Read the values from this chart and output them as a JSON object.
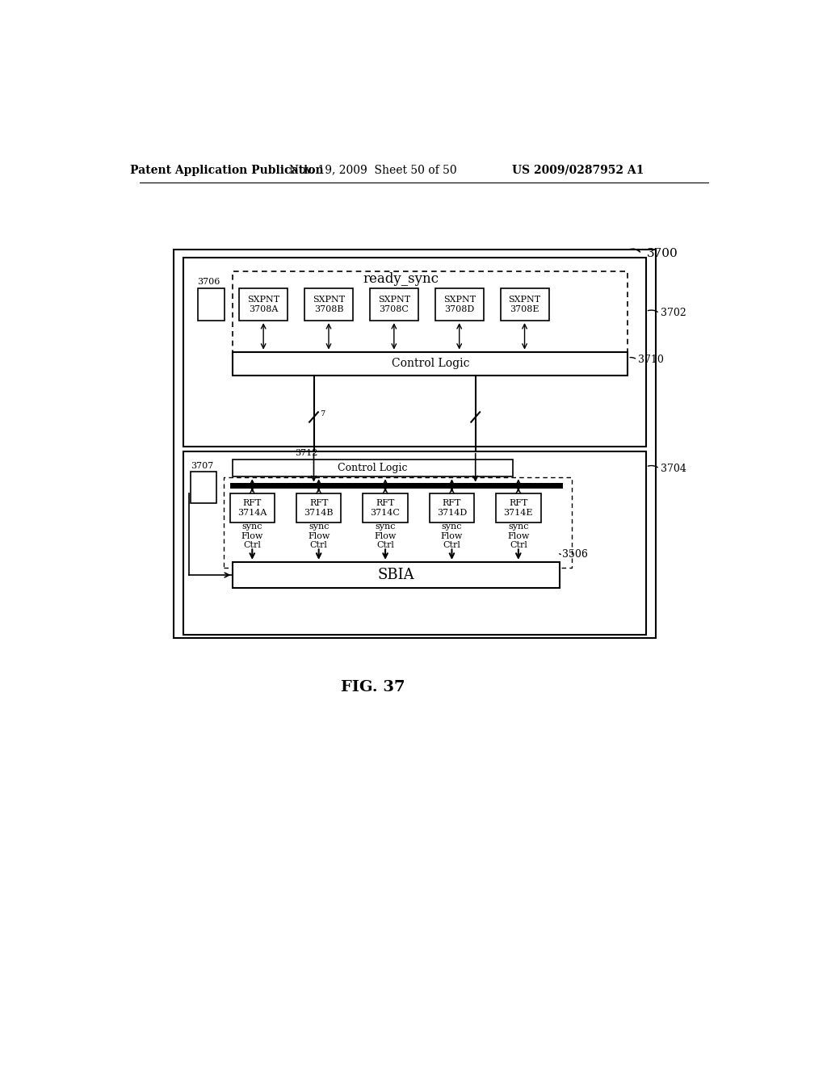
{
  "bg_color": "#ffffff",
  "header_left": "Patent Application Publication",
  "header_mid": "Nov. 19, 2009  Sheet 50 of 50",
  "header_right": "US 2009/0287952 A1",
  "fig_label": "FIG. 37",
  "ready_sync_text": "ready_sync",
  "control_logic_text": "Control Logic",
  "sbia_text": "SBIA",
  "label_3700": "3700",
  "label_3702": "3702",
  "label_3704": "3704",
  "label_3706": "3706",
  "label_3707": "3707",
  "label_3710": "3710",
  "label_3712": "3712",
  "label_3506": "3506",
  "sxpnt_boxes": [
    "SXPNT\n3708A",
    "SXPNT\n3708B",
    "SXPNT\n3708C",
    "SXPNT\n3708D",
    "SXPNT\n3708E"
  ],
  "rft_boxes": [
    "RFT\n3714A",
    "RFT\n3714B",
    "RFT\n3714C",
    "RFT\n3714D",
    "RFT\n3714E"
  ],
  "flow_ctrl_labels": [
    "sync\nFlow\nCtrl",
    "sync\nFlow\nCtrl",
    "sync\nFlow\nCtrl",
    "sync\nFlow\nCtrl",
    "sync\nFlow\nCtrl"
  ]
}
